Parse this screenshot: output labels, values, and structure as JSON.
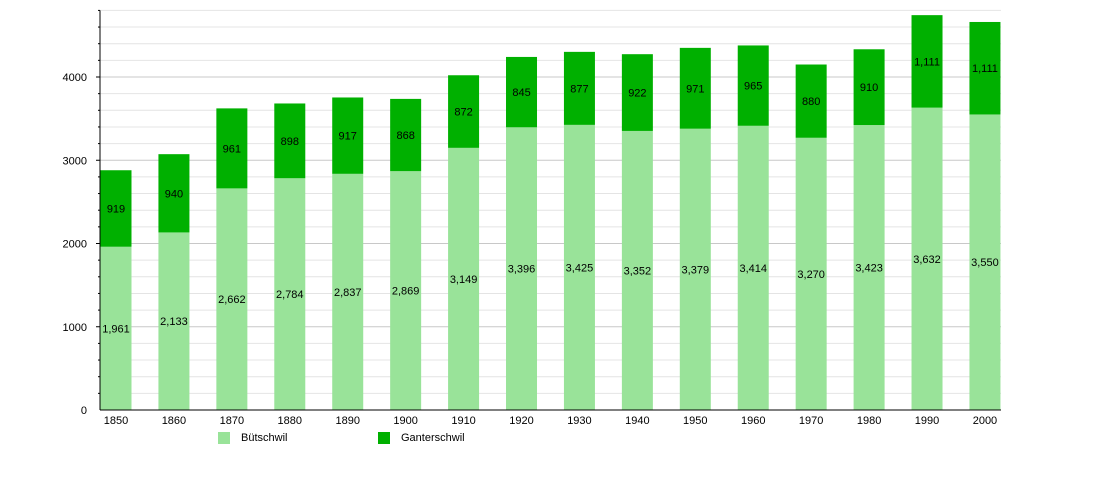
{
  "chart_data": {
    "type": "bar",
    "stacked": true,
    "categories": [
      "1850",
      "1860",
      "1870",
      "1880",
      "1890",
      "1900",
      "1910",
      "1920",
      "1930",
      "1940",
      "1950",
      "1960",
      "1970",
      "1980",
      "1990",
      "2000"
    ],
    "series": [
      {
        "name": "Bütschwil",
        "color": "#99e399",
        "values": [
          1961,
          2133,
          2662,
          2784,
          2837,
          2869,
          3149,
          3396,
          3425,
          3352,
          3379,
          3414,
          3270,
          3423,
          3632,
          3550
        ],
        "labels": [
          "1,961",
          "2,133",
          "2,662",
          "2,784",
          "2,837",
          "2,869",
          "3,149",
          "3,396",
          "3,425",
          "3,352",
          "3,379",
          "3,414",
          "3,270",
          "3,423",
          "3,632",
          "3,550"
        ]
      },
      {
        "name": "Ganterschwil",
        "color": "#00b000",
        "values": [
          919,
          940,
          961,
          898,
          917,
          868,
          872,
          845,
          877,
          922,
          971,
          965,
          880,
          910,
          1111,
          1111
        ],
        "labels": [
          "919",
          "940",
          "961",
          "898",
          "917",
          "868",
          "872",
          "845",
          "877",
          "922",
          "971",
          "965",
          "880",
          "910",
          "1,111",
          "1,111"
        ]
      }
    ],
    "ylim": [
      0,
      4800
    ],
    "yticks": [
      "0",
      "1000",
      "2000",
      "3000",
      "4000"
    ],
    "grid": true,
    "legend_position": "bottom"
  }
}
